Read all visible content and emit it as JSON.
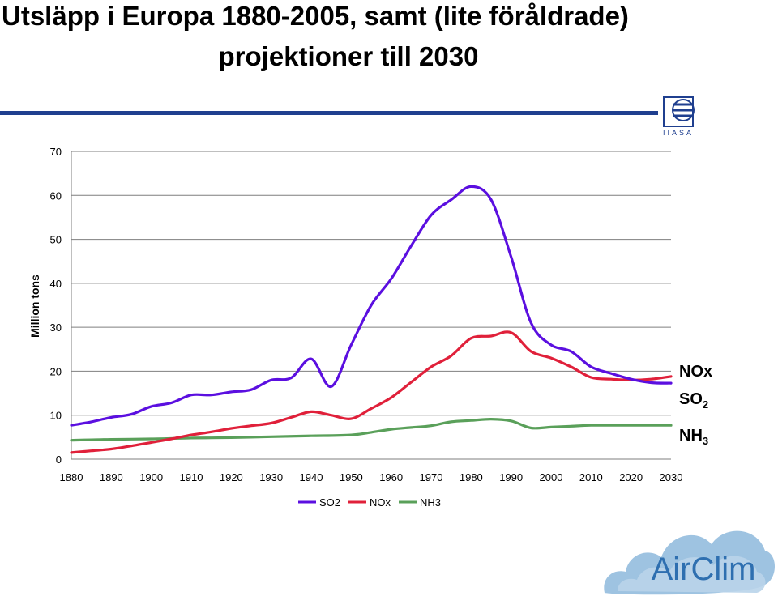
{
  "title": {
    "line1": "Utsläpp i Europa 1880-2005, samt (lite föråldrade)",
    "line2": "projektioner till 2030"
  },
  "logos": {
    "top_right": "IIASA",
    "bottom_right": "AirClim"
  },
  "side_labels": [
    "NOx",
    "SO",
    "NH"
  ],
  "side_label_subscripts": [
    "",
    "2",
    "3"
  ],
  "colors": {
    "SO2": "#5b0fe0",
    "NOx": "#e0203a",
    "NH3": "#5aa05a",
    "rule": "#1f3f8f",
    "airclim_text": "#2e6fb0",
    "cloud": "#8db8dc"
  },
  "chart_data": {
    "type": "line",
    "ylabel": "Million tons",
    "xlabel": "",
    "ylim": [
      0,
      70
    ],
    "xlim": [
      1880,
      2030
    ],
    "yticks": [
      0,
      10,
      20,
      30,
      40,
      50,
      60,
      70
    ],
    "xticks": [
      1880,
      1890,
      1900,
      1910,
      1920,
      1930,
      1940,
      1950,
      1960,
      1970,
      1980,
      1990,
      2000,
      2010,
      2020,
      2030
    ],
    "grid": true,
    "legend_position": "bottom",
    "series": [
      {
        "name": "SO2",
        "x": [
          1880,
          1885,
          1890,
          1895,
          1900,
          1905,
          1910,
          1915,
          1920,
          1925,
          1930,
          1935,
          1940,
          1945,
          1950,
          1955,
          1960,
          1965,
          1970,
          1975,
          1980,
          1985,
          1990,
          1995,
          2000,
          2005,
          2010,
          2015,
          2020,
          2025,
          2030
        ],
        "y": [
          7.7,
          8.5,
          9.5,
          10.2,
          12,
          12.8,
          14.6,
          14.6,
          15.3,
          15.8,
          18,
          18.5,
          22.8,
          16.5,
          26,
          35,
          41,
          48.5,
          55.5,
          59,
          62,
          59,
          46,
          31,
          26,
          24.5,
          21,
          19.5,
          18.2,
          17.4,
          17.3
        ]
      },
      {
        "name": "NOx",
        "x": [
          1880,
          1885,
          1890,
          1895,
          1900,
          1905,
          1910,
          1915,
          1920,
          1925,
          1930,
          1935,
          1940,
          1945,
          1950,
          1955,
          1960,
          1965,
          1970,
          1975,
          1980,
          1985,
          1990,
          1995,
          2000,
          2005,
          2010,
          2015,
          2020,
          2025,
          2030
        ],
        "y": [
          1.5,
          1.9,
          2.3,
          3,
          3.8,
          4.6,
          5.5,
          6.2,
          7,
          7.6,
          8.2,
          9.5,
          10.8,
          10,
          9.2,
          11.5,
          14,
          17.5,
          21,
          23.5,
          27.5,
          28,
          28.8,
          24.5,
          23,
          21,
          18.6,
          18.2,
          18,
          18.2,
          18.8
        ]
      },
      {
        "name": "NH3",
        "x": [
          1880,
          1890,
          1900,
          1910,
          1920,
          1930,
          1940,
          1950,
          1955,
          1960,
          1965,
          1970,
          1975,
          1980,
          1985,
          1990,
          1995,
          2000,
          2005,
          2010,
          2015,
          2020,
          2025,
          2030
        ],
        "y": [
          4.3,
          4.5,
          4.6,
          4.8,
          4.9,
          5.1,
          5.3,
          5.5,
          6.1,
          6.8,
          7.2,
          7.6,
          8.5,
          8.8,
          9.1,
          8.7,
          7.1,
          7.3,
          7.5,
          7.7,
          7.7,
          7.7,
          7.7,
          7.7
        ]
      }
    ]
  }
}
